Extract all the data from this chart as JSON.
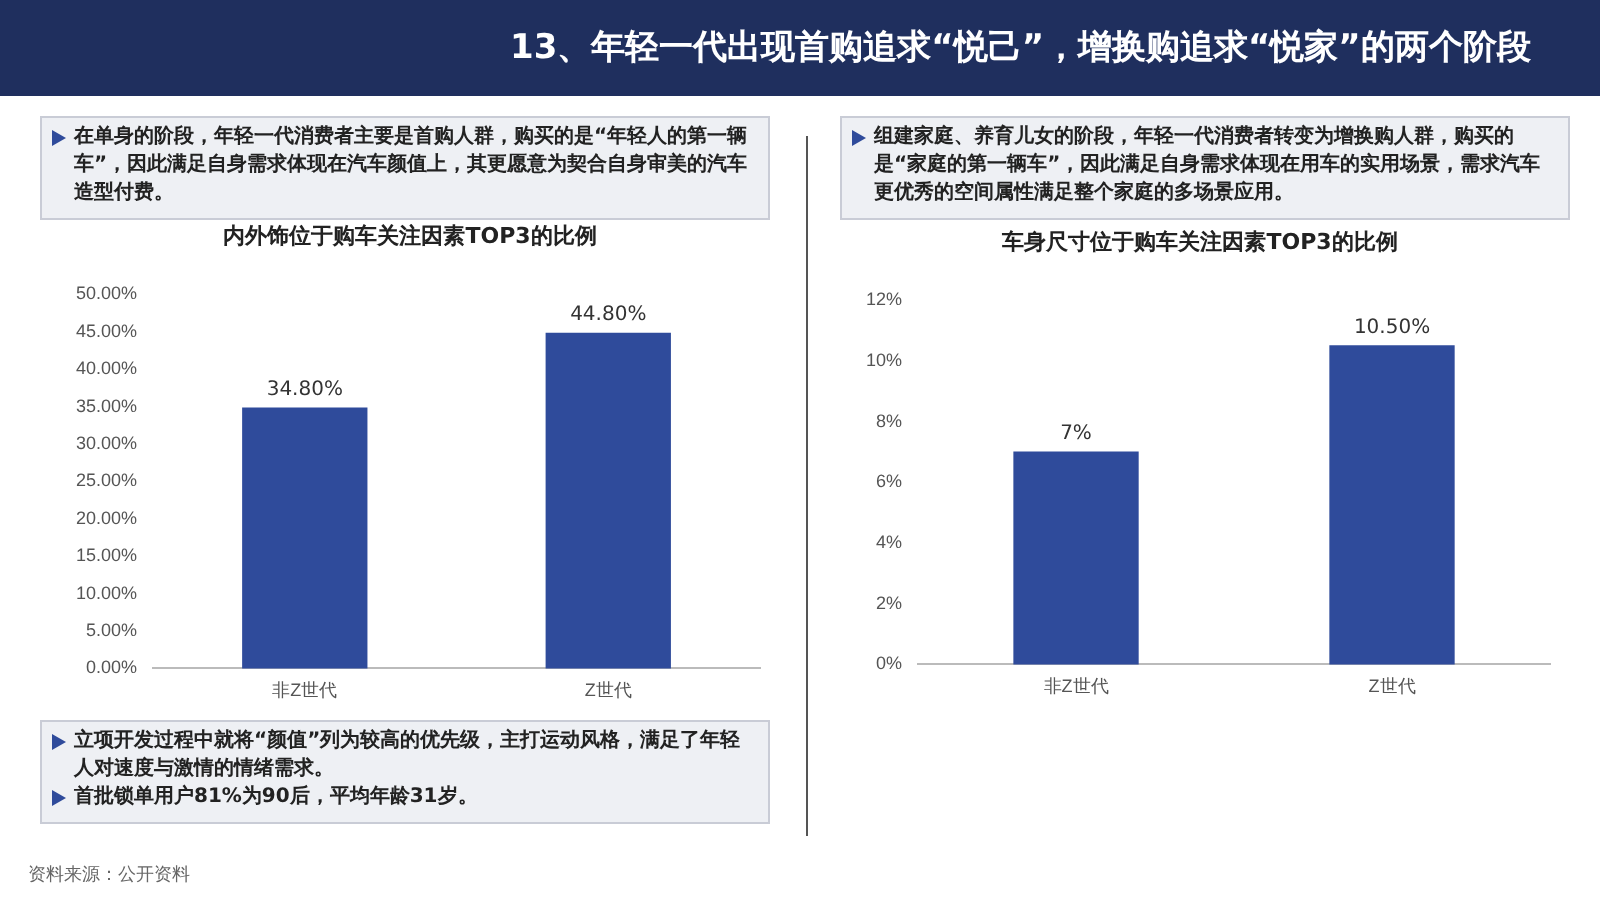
{
  "chart_data": [
    {
      "type": "bar",
      "title": "内外饰位于购车关注因素TOP3的比例",
      "categories": [
        "非Z世代",
        "Z世代"
      ],
      "values": [
        34.8,
        44.8
      ],
      "color": "#2f4b9b",
      "value_labels": [
        "34.80%",
        "44.80%"
      ],
      "ylim": [
        0,
        50
      ],
      "yticks": [
        {
          "value": 0,
          "label": "0.00%"
        },
        {
          "value": 5,
          "label": "5.00%"
        },
        {
          "value": 10,
          "label": "10.00%"
        },
        {
          "value": 15,
          "label": "15.00%"
        },
        {
          "value": 20,
          "label": "20.00%"
        },
        {
          "value": 25,
          "label": "25.00%"
        },
        {
          "value": 30,
          "label": "30.00%"
        },
        {
          "value": 35,
          "label": "35.00%"
        },
        {
          "value": 40,
          "label": "40.00%"
        },
        {
          "value": 45,
          "label": "45.00%"
        },
        {
          "value": 50,
          "label": "50.00%"
        }
      ],
      "annotations": [
        "13、年轻一代出现首购追求“悦己”，增换购追求“悦家”的两个阶段",
        "在单身的阶段，年轻一代消费者主要是首购人群，购买的是“年轻人的第一辆车”，因此满足自身需求体现在汽车颜值上，其更愿意为契合自身审美的汽车造型付费。",
        "立项开发过程中就将“颜值”列为较高的优先级，主打运动风格，满足了年轻人对速度与激情的情绪需求。",
        "首批锁单用户81%为90后，平均年龄31岁。",
        "资料来源：公开资料"
      ]
    },
    {
      "type": "bar",
      "title": "车身尺寸位于购车关注因素TOP3的比例",
      "categories": [
        "非Z世代",
        "Z世代"
      ],
      "values": [
        7,
        10.5
      ],
      "color": "#2f4b9b",
      "value_labels": [
        "7%",
        "10.50%"
      ],
      "ylim": [
        0,
        12
      ],
      "yticks": [
        {
          "value": 0,
          "label": "0%"
        },
        {
          "value": 2,
          "label": "2%"
        },
        {
          "value": 4,
          "label": "4%"
        },
        {
          "value": 6,
          "label": "6%"
        },
        {
          "value": 8,
          "label": "8%"
        },
        {
          "value": 10,
          "label": "10%"
        },
        {
          "value": 12,
          "label": "12%"
        }
      ],
      "annotations": [
        "组建家庭、养育儿女的阶段，年轻一代消费者转变为增换购人群，购买的是“家庭的第一辆车”，因此满足自身需求体现在用车的实用场景，需求汽车更优秀的空间属性满足整个家庭的多场景应用。"
      ]
    }
  ]
}
